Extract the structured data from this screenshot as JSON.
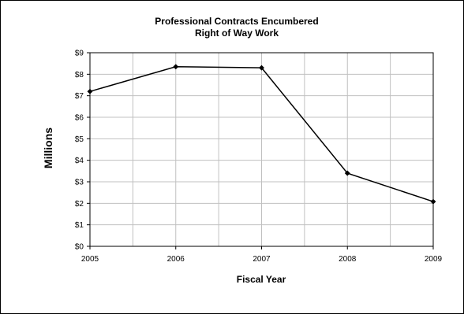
{
  "chart_data": {
    "type": "line",
    "title": "Professional Contracts Encumbered",
    "subtitle": "Right of Way Work",
    "xlabel": "Fiscal Year",
    "ylabel": "Millions",
    "categories": [
      "2005",
      "2006",
      "2007",
      "2008",
      "2009"
    ],
    "x": [
      2005,
      2006,
      2007,
      2008,
      2009
    ],
    "series": [
      {
        "values": [
          7.2,
          8.35,
          8.3,
          3.4,
          2.08
        ]
      }
    ],
    "ylim": [
      0,
      9
    ],
    "xlim": [
      2005,
      2009
    ],
    "y_ticks": [
      "$0",
      "$1",
      "$2",
      "$3",
      "$4",
      "$5",
      "$6",
      "$7",
      "$8",
      "$9"
    ],
    "x_ticks": [
      "2005",
      "2006",
      "2007",
      "2008",
      "2009"
    ],
    "grid": true,
    "legend": "none",
    "colors": {
      "line": "#000000",
      "grid": "#c0c0c0",
      "frame": "#000000",
      "background": "#ffffff"
    }
  }
}
